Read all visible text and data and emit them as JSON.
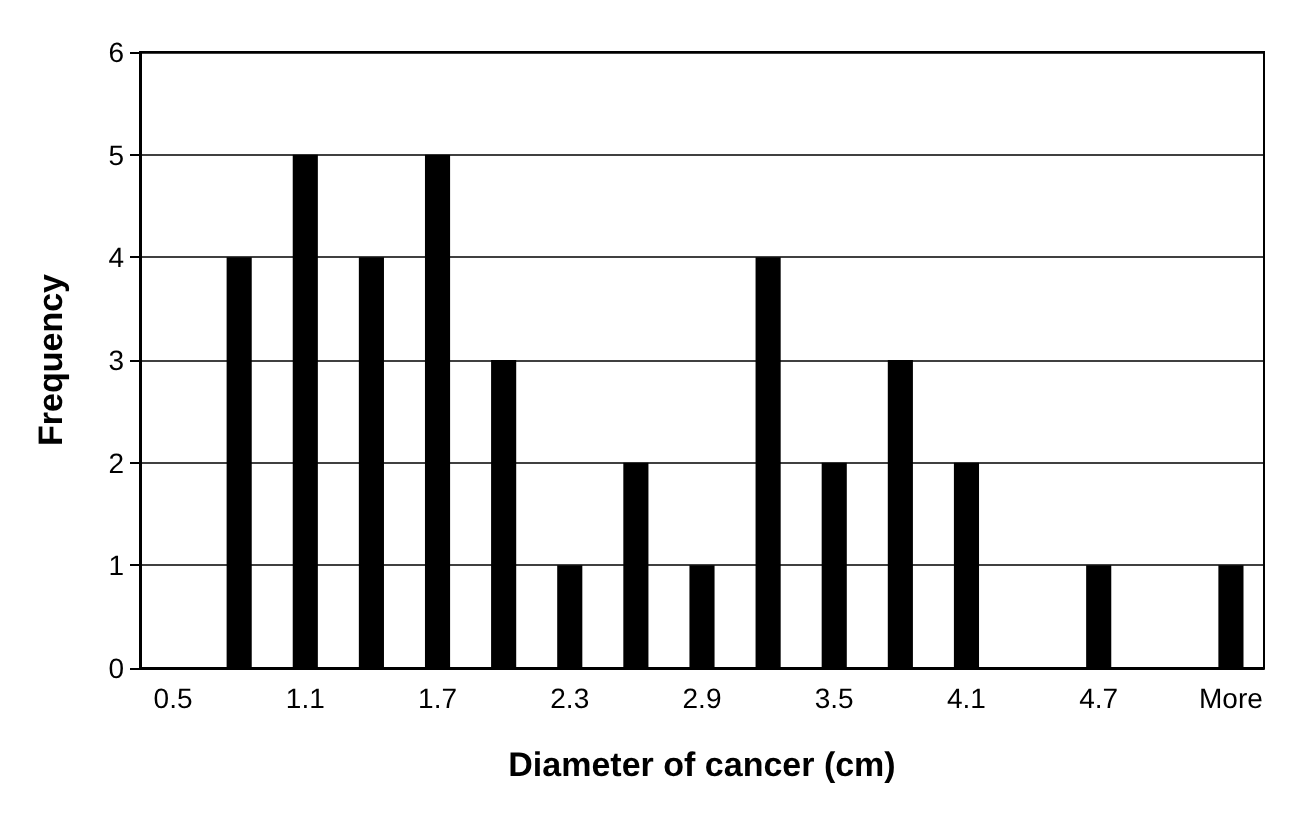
{
  "chart_data": {
    "type": "bar",
    "xlabel": "Diameter of cancer (cm)",
    "ylabel": "Frequency",
    "categories": [
      "0.5",
      null,
      "1.1",
      null,
      "1.7",
      null,
      "2.3",
      null,
      "2.9",
      null,
      "3.5",
      null,
      "4.1",
      null,
      "4.7",
      null,
      "More"
    ],
    "values": [
      0,
      4,
      5,
      4,
      5,
      3,
      1,
      2,
      1,
      4,
      2,
      3,
      2,
      0,
      1,
      0,
      1
    ],
    "color": "#000000",
    "ylim": [
      0,
      6
    ],
    "yticks": [
      0,
      1,
      2,
      3,
      4,
      5,
      6
    ],
    "grid": "y"
  }
}
